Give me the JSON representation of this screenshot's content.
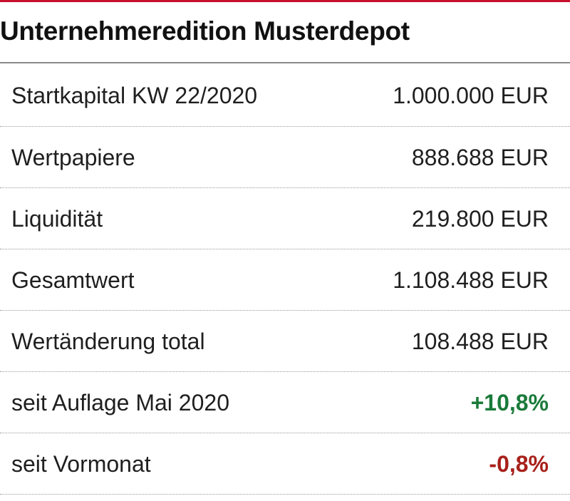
{
  "title": "Unternehmeredition Musterdepot",
  "colors": {
    "accent_rule": "#c8102e",
    "positive": "#1a7a3a",
    "negative": "#a8201a"
  },
  "rows": [
    {
      "label": "Startkapital KW 22/2020",
      "value": "1.000.000 EUR",
      "tone": "neutral"
    },
    {
      "label": "Wertpapiere",
      "value": "888.688 EUR",
      "tone": "neutral"
    },
    {
      "label": "Liquidität",
      "value": "219.800 EUR",
      "tone": "neutral"
    },
    {
      "label": "Gesamtwert",
      "value": "1.108.488 EUR",
      "tone": "neutral"
    },
    {
      "label": "Wertänderung total",
      "value": "108.488 EUR",
      "tone": "neutral"
    },
    {
      "label": "seit Auflage Mai 2020",
      "value": "+10,8%",
      "tone": "positive"
    },
    {
      "label": "seit Vormonat",
      "value": "-0,8%",
      "tone": "negative"
    }
  ]
}
